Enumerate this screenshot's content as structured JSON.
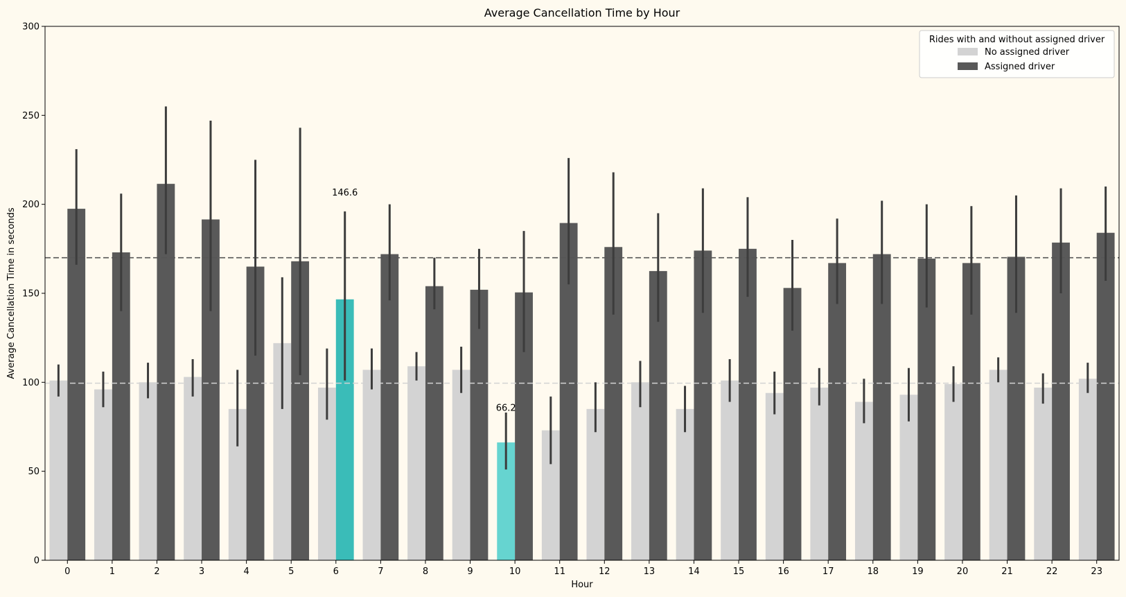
{
  "chart_data": {
    "type": "bar",
    "title": "Average Cancellation Time by Hour",
    "xlabel": "Hour",
    "ylabel": "Average Cancellation Time in seconds",
    "ylim": [
      0,
      300
    ],
    "yticks": [
      0,
      50,
      100,
      150,
      200,
      250,
      300
    ],
    "categories": [
      "0",
      "1",
      "2",
      "3",
      "4",
      "5",
      "6",
      "7",
      "8",
      "9",
      "10",
      "11",
      "12",
      "13",
      "14",
      "15",
      "16",
      "17",
      "18",
      "19",
      "20",
      "21",
      "22",
      "23"
    ],
    "legend": {
      "title": "Rides with and without assigned driver",
      "position": "top-right"
    },
    "series": [
      {
        "name": "No assigned driver",
        "color": "#d3d3d3",
        "values": [
          101,
          96,
          100,
          103,
          85,
          122,
          97,
          107,
          109,
          107,
          66.2,
          73,
          85,
          100,
          85,
          101,
          94,
          97,
          89,
          93,
          99,
          107,
          97,
          102
        ],
        "err_low": [
          92,
          86,
          91,
          92,
          64,
          85,
          79,
          96,
          101,
          94,
          51,
          54,
          72,
          86,
          72,
          89,
          82,
          87,
          77,
          78,
          89,
          100,
          88,
          94
        ],
        "err_high": [
          110,
          106,
          111,
          113,
          107,
          159,
          119,
          119,
          117,
          120,
          83,
          92,
          100,
          112,
          98,
          113,
          106,
          108,
          102,
          108,
          109,
          114,
          105,
          111
        ],
        "highlight": {
          "10": "#66d4d0"
        }
      },
      {
        "name": "Assigned driver",
        "color": "#595959",
        "values": [
          197.5,
          173,
          211.5,
          191.5,
          165,
          168,
          146.6,
          172,
          154,
          152,
          150.5,
          189.5,
          176,
          162.5,
          174,
          175,
          153,
          167,
          172,
          169.5,
          167,
          170.5,
          178.5,
          184
        ],
        "err_low": [
          166,
          140,
          172,
          140,
          115,
          104,
          101,
          146,
          141,
          130,
          117,
          155,
          138,
          134,
          139,
          148,
          129,
          144,
          144,
          142,
          138,
          139,
          150,
          157
        ],
        "err_high": [
          231,
          206,
          255,
          247,
          225,
          243,
          196,
          200,
          170,
          175,
          185,
          226,
          218,
          195,
          209,
          204,
          180,
          192,
          202,
          200,
          199,
          205,
          209,
          210
        ],
        "highlight": {
          "6": "#3abcb8"
        }
      }
    ],
    "reference_lines": [
      {
        "value": 170,
        "color": "#555555",
        "style": "dashed"
      },
      {
        "value": 99.5,
        "color": "#d3d3d3",
        "style": "dashed"
      }
    ],
    "annotations": [
      {
        "text": "146.6",
        "category": "6",
        "series": 1,
        "y": 205
      },
      {
        "text": "66.2",
        "category": "10",
        "series": 0,
        "y": 84
      }
    ],
    "grid": false
  }
}
